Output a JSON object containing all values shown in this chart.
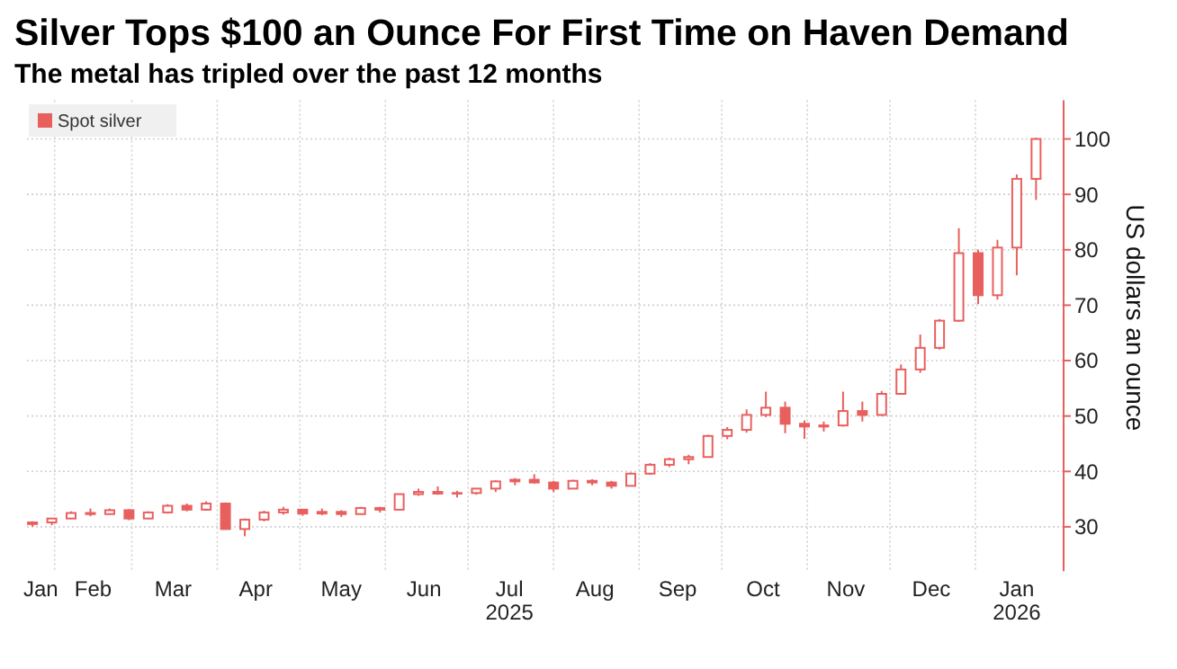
{
  "chart_data": {
    "type": "candlestick",
    "title": "Silver Tops $100 an Ounce For First Time on Haven Demand",
    "subtitle": "The metal has tripled over the past 12 months",
    "ylabel": "US dollars an ounce",
    "legend": "top left",
    "grid": true,
    "xlim": [
      "2025-01-22",
      "2026-02-02"
    ],
    "xticks": [
      {
        "value": "2025-01-27",
        "label": "Jan"
      },
      {
        "value": "2025-02-01",
        "label": null
      },
      {
        "value": "2025-02-15",
        "label": "Feb"
      },
      {
        "value": "2025-03-01",
        "label": null
      },
      {
        "value": "2025-03-16",
        "label": "Mar"
      },
      {
        "value": "2025-04-01",
        "label": null
      },
      {
        "value": "2025-04-15",
        "label": "Apr"
      },
      {
        "value": "2025-05-01",
        "label": null
      },
      {
        "value": "2025-05-16",
        "label": "May"
      },
      {
        "value": "2025-06-01",
        "label": null
      },
      {
        "value": "2025-06-15",
        "label": "Jun"
      },
      {
        "value": "2025-07-01",
        "label": null
      },
      {
        "value": "2025-07-16",
        "label": "Jul\n2025"
      },
      {
        "value": "2025-08-01",
        "label": null
      },
      {
        "value": "2025-08-16",
        "label": "Aug"
      },
      {
        "value": "2025-09-01",
        "label": null
      },
      {
        "value": "2025-09-15",
        "label": "Sep"
      },
      {
        "value": "2025-10-01",
        "label": null
      },
      {
        "value": "2025-10-16",
        "label": "Oct"
      },
      {
        "value": "2025-11-01",
        "label": null
      },
      {
        "value": "2025-11-15",
        "label": "Nov"
      },
      {
        "value": "2025-12-01",
        "label": null
      },
      {
        "value": "2025-12-16",
        "label": "Dec"
      },
      {
        "value": "2026-01-01",
        "label": null
      },
      {
        "value": "2026-01-16",
        "label": "Jan\n2026"
      }
    ],
    "ylim": [
      22,
      107
    ],
    "yticks": [
      30,
      40,
      50,
      60,
      70,
      80,
      90,
      100
    ],
    "x": [
      "2025-01-24",
      "2025-01-31",
      "2025-02-07",
      "2025-02-14",
      "2025-02-21",
      "2025-02-28",
      "2025-03-07",
      "2025-03-14",
      "2025-03-21",
      "2025-03-28",
      "2025-04-04",
      "2025-04-11",
      "2025-04-18",
      "2025-04-25",
      "2025-05-02",
      "2025-05-09",
      "2025-05-16",
      "2025-05-23",
      "2025-05-30",
      "2025-06-06",
      "2025-06-13",
      "2025-06-20",
      "2025-06-27",
      "2025-07-04",
      "2025-07-11",
      "2025-07-18",
      "2025-07-25",
      "2025-08-01",
      "2025-08-08",
      "2025-08-15",
      "2025-08-22",
      "2025-08-29",
      "2025-09-05",
      "2025-09-12",
      "2025-09-19",
      "2025-09-26",
      "2025-10-03",
      "2025-10-10",
      "2025-10-17",
      "2025-10-24",
      "2025-10-31",
      "2025-11-07",
      "2025-11-14",
      "2025-11-21",
      "2025-11-28",
      "2025-12-05",
      "2025-12-12",
      "2025-12-19",
      "2025-12-26",
      "2026-01-02",
      "2026-01-09",
      "2026-01-16",
      "2026-01-23"
    ],
    "series": [
      {
        "name": "Spot silver",
        "color": "#e8605e",
        "ohlc": [
          [
            30.5,
            31.0,
            30.0,
            30.8
          ],
          [
            30.8,
            31.6,
            30.3,
            31.5
          ],
          [
            31.5,
            32.8,
            31.4,
            32.5
          ],
          [
            32.5,
            33.3,
            31.9,
            32.3
          ],
          [
            32.3,
            33.3,
            32.2,
            33.0
          ],
          [
            33.0,
            33.2,
            31.2,
            31.5
          ],
          [
            31.5,
            32.8,
            31.4,
            32.6
          ],
          [
            32.6,
            34.1,
            32.4,
            33.8
          ],
          [
            33.8,
            34.2,
            32.8,
            33.1
          ],
          [
            33.1,
            34.6,
            32.9,
            34.2
          ],
          [
            34.2,
            34.4,
            29.5,
            29.6
          ],
          [
            29.6,
            31.5,
            28.3,
            31.3
          ],
          [
            31.3,
            32.9,
            31.0,
            32.6
          ],
          [
            32.6,
            33.6,
            32.2,
            33.1
          ],
          [
            33.1,
            33.2,
            32.0,
            32.4
          ],
          [
            32.4,
            33.3,
            32.1,
            32.7
          ],
          [
            32.7,
            33.0,
            31.8,
            32.3
          ],
          [
            32.3,
            33.6,
            32.2,
            33.4
          ],
          [
            33.4,
            33.6,
            32.6,
            33.1
          ],
          [
            33.1,
            36.0,
            33.0,
            35.9
          ],
          [
            35.9,
            36.9,
            35.6,
            36.3
          ],
          [
            36.3,
            37.3,
            35.8,
            36.0
          ],
          [
            36.0,
            36.5,
            35.3,
            36.1
          ],
          [
            36.1,
            37.0,
            35.8,
            36.9
          ],
          [
            36.9,
            38.4,
            36.3,
            38.2
          ],
          [
            38.2,
            38.8,
            37.5,
            38.5
          ],
          [
            38.5,
            39.5,
            37.8,
            38.0
          ],
          [
            38.0,
            38.3,
            36.3,
            36.9
          ],
          [
            36.9,
            38.5,
            36.8,
            38.3
          ],
          [
            38.3,
            38.6,
            37.5,
            38.0
          ],
          [
            38.0,
            38.3,
            36.9,
            37.4
          ],
          [
            37.4,
            39.8,
            37.3,
            39.6
          ],
          [
            39.6,
            41.5,
            39.4,
            41.2
          ],
          [
            41.2,
            42.5,
            40.8,
            42.2
          ],
          [
            42.2,
            43.0,
            41.3,
            42.6
          ],
          [
            42.6,
            46.6,
            42.5,
            46.4
          ],
          [
            46.4,
            48.0,
            45.8,
            47.5
          ],
          [
            47.5,
            51.2,
            47.0,
            50.2
          ],
          [
            50.2,
            54.4,
            49.8,
            51.5
          ],
          [
            51.5,
            52.6,
            46.9,
            48.6
          ],
          [
            48.6,
            49.2,
            45.9,
            48.1
          ],
          [
            48.1,
            49.0,
            47.2,
            48.3
          ],
          [
            48.3,
            54.4,
            48.1,
            50.9
          ],
          [
            50.9,
            52.6,
            49.0,
            50.2
          ],
          [
            50.2,
            54.5,
            50.0,
            54.0
          ],
          [
            54.0,
            59.3,
            54.0,
            58.4
          ],
          [
            58.4,
            64.7,
            57.8,
            62.3
          ],
          [
            62.3,
            67.5,
            62.0,
            67.2
          ],
          [
            67.2,
            83.9,
            67.0,
            79.4
          ],
          [
            79.4,
            80.0,
            70.2,
            71.8
          ],
          [
            71.8,
            81.8,
            71.0,
            80.4
          ],
          [
            80.4,
            93.6,
            75.4,
            92.8
          ],
          [
            92.8,
            100.2,
            89.0,
            100.0
          ]
        ]
      }
    ]
  }
}
